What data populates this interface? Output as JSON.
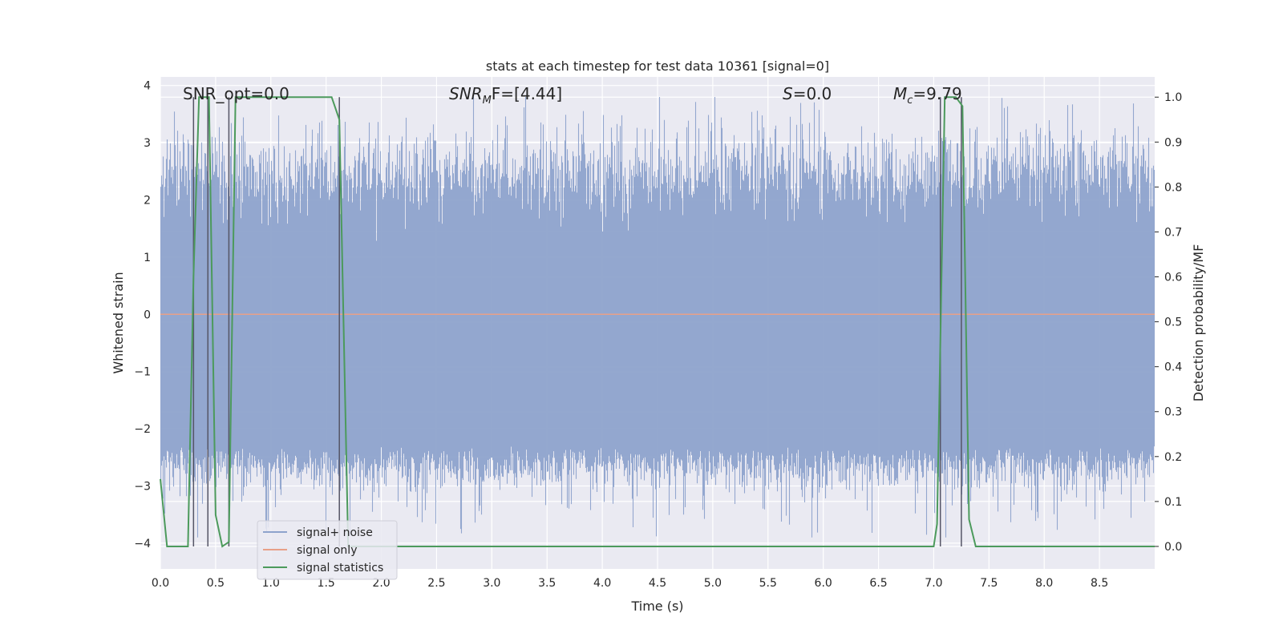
{
  "chart_data": {
    "type": "line",
    "title": "stats at each timestep for test data 10361 [signal=0]",
    "xlabel": "Time (s)",
    "ylabel": "Whitened strain",
    "ylabel_right": "Detection probability/MF",
    "xlim": [
      0.0,
      9.0
    ],
    "ylim": [
      -4.45,
      4.15
    ],
    "ylim_right": [
      -0.05,
      1.045
    ],
    "x_ticks": [
      0.0,
      0.5,
      1.0,
      1.5,
      2.0,
      2.5,
      3.0,
      3.5,
      4.0,
      4.5,
      5.0,
      5.5,
      6.0,
      6.5,
      7.0,
      7.5,
      8.0,
      8.5
    ],
    "x_tick_labels": [
      "0.0",
      "0.5",
      "1.0",
      "1.5",
      "2.0",
      "2.5",
      "3.0",
      "3.5",
      "4.0",
      "4.5",
      "5.0",
      "5.5",
      "6.0",
      "6.5",
      "7.0",
      "7.5",
      "8.0",
      "8.5"
    ],
    "y_ticks": [
      -4,
      -3,
      -2,
      -1,
      0,
      1,
      2,
      3,
      4
    ],
    "y_tick_labels": [
      "−4",
      "−3",
      "−2",
      "−1",
      "0",
      "1",
      "2",
      "3",
      "4"
    ],
    "y_right_ticks": [
      0.0,
      0.1,
      0.2,
      0.3,
      0.4,
      0.5,
      0.6,
      0.7,
      0.8,
      0.9,
      1.0
    ],
    "y_right_tick_labels": [
      "0.0",
      "0.1",
      "0.2",
      "0.3",
      "0.4",
      "0.5",
      "0.6",
      "0.7",
      "0.8",
      "0.9",
      "1.0"
    ],
    "grid": true,
    "legend_position": "lower-left",
    "annotations": {
      "snr_opt": "SNR_opt=0.0",
      "snr_mf": {
        "base": "SNR",
        "sub": "M",
        "rest": "F=[4.44]"
      },
      "s": {
        "italic": "S",
        "rest": "=0.0"
      },
      "mc": {
        "base": "M",
        "sub": "c",
        "rest": "=9.79"
      }
    },
    "series": [
      {
        "name": "signal+ noise",
        "color": "#8ea3cc",
        "style": "dense noise trace",
        "y_range_approx": [
          -3.9,
          3.8
        ],
        "typical_envelope": [
          -2.3,
          2.5
        ]
      },
      {
        "name": "signal only",
        "color": "#e8a088",
        "x": [
          0.0,
          9.0
        ],
        "y": [
          0.0,
          0.0
        ]
      },
      {
        "name": "signal statistics",
        "color": "#4c9a5c",
        "axis": "right",
        "x": [
          0.0,
          0.06,
          0.25,
          0.3,
          0.35,
          0.38,
          0.44,
          0.5,
          0.56,
          0.62,
          0.68,
          0.7,
          1.0,
          1.4,
          1.55,
          1.62,
          1.7,
          2.0,
          3.0,
          4.0,
          5.0,
          6.0,
          7.0,
          7.03,
          7.1,
          7.2,
          7.26,
          7.32,
          7.38,
          7.45,
          8.0,
          9.0
        ],
        "y": [
          0.15,
          0.0,
          0.0,
          0.6,
          1.0,
          1.0,
          1.0,
          0.07,
          0.0,
          0.01,
          1.0,
          1.0,
          1.0,
          1.0,
          1.0,
          0.95,
          0.0,
          0.0,
          0.0,
          0.0,
          0.0,
          0.0,
          0.0,
          0.05,
          1.0,
          1.0,
          0.98,
          0.06,
          0.0,
          0.0,
          0.0,
          0.0
        ]
      }
    ],
    "event_markers_x": [
      0.3,
      0.43,
      0.62,
      1.62,
      7.06,
      7.25
    ]
  }
}
